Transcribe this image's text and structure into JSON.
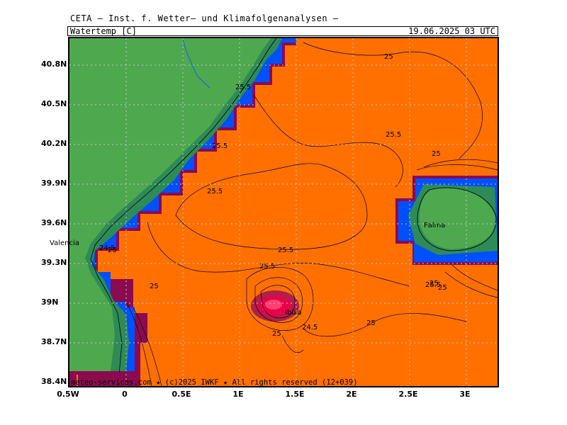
{
  "header": {
    "title": "CETA – Inst. f. Wetter– und Klimafolgenanalysen –"
  },
  "info_bar": {
    "variable": "Watertemp_[C]",
    "timestamp": "19.06.2025 03 UTC"
  },
  "axes": {
    "y_ticks": [
      "40.8N",
      "40.5N",
      "40.2N",
      "39.9N",
      "39.6N",
      "39.3N",
      "39N",
      "38.7N",
      "38.4N"
    ],
    "x_ticks": [
      "0.5W",
      "0",
      "0.5E",
      "1E",
      "1.5E",
      "2E",
      "2.5E",
      "3E"
    ]
  },
  "cities": {
    "valencia": "Valencia",
    "palma": "Palma",
    "ibiza": "Ibiza"
  },
  "contour_labels": {
    "l1": "25",
    "l2": "25.5",
    "l3": "25.5",
    "l4": "25.5",
    "l5": "25",
    "l6": "25.5",
    "l7": "25.5",
    "l8": "25.5",
    "l9": "24.5",
    "l10": "25",
    "l11": "25",
    "l12": "24.5",
    "l13": "25",
    "l14": "25",
    "l15": "25",
    "l16": "25",
    "l17": "25.5"
  },
  "footer": {
    "copyright": "meteo-services.com ★ (c)2025 IWKF ★ All rights reserved (12+039)"
  },
  "colors": {
    "sea": "#ff7000",
    "land_green": "#4ea84e",
    "coast_teal": "#2e8b57",
    "coast_blue": "#0050ff",
    "coast_magenta": "#8b0a50",
    "hotspot": "#e8004a"
  },
  "chart_data": {
    "type": "heatmap",
    "title": "Watertemp_[C]",
    "valid_time": "19.06.2025 03 UTC",
    "x_range": [
      "0.5W",
      "3.3E"
    ],
    "y_range": [
      "38.4N",
      "41.0N"
    ],
    "contour_values": [
      24.5,
      25,
      25.5
    ]
  }
}
